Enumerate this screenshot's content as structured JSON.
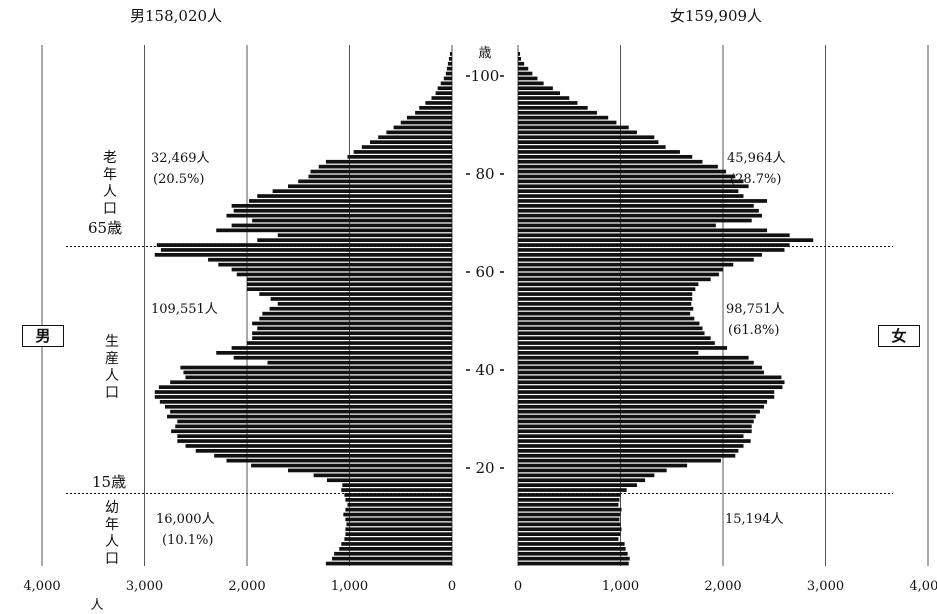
{
  "chart_data": {
    "type": "bar",
    "orientation": "horizontal-pyramid",
    "ages": [
      0,
      1,
      2,
      3,
      4,
      5,
      6,
      7,
      8,
      9,
      10,
      11,
      12,
      13,
      14,
      15,
      16,
      17,
      18,
      19,
      20,
      21,
      22,
      23,
      24,
      25,
      26,
      27,
      28,
      29,
      30,
      31,
      32,
      33,
      34,
      35,
      36,
      37,
      38,
      39,
      40,
      41,
      42,
      43,
      44,
      45,
      46,
      47,
      48,
      49,
      50,
      51,
      52,
      53,
      54,
      55,
      56,
      57,
      58,
      59,
      60,
      61,
      62,
      63,
      64,
      65,
      66,
      67,
      68,
      69,
      70,
      71,
      72,
      73,
      74,
      75,
      76,
      77,
      78,
      79,
      80,
      81,
      82,
      83,
      84,
      85,
      86,
      87,
      88,
      89,
      90,
      91,
      92,
      93,
      94,
      95,
      96,
      97,
      98,
      99,
      100,
      101,
      102,
      103,
      104
    ],
    "series": [
      {
        "name": "男",
        "values": [
          1230,
          1170,
          1150,
          1100,
          1080,
          1050,
          1040,
          1040,
          1030,
          1040,
          1060,
          1040,
          1020,
          1040,
          1050,
          1080,
          1070,
          1220,
          1350,
          1600,
          1960,
          2200,
          2320,
          2500,
          2600,
          2680,
          2680,
          2740,
          2700,
          2680,
          2780,
          2750,
          2800,
          2850,
          2900,
          2900,
          2860,
          2750,
          2600,
          2620,
          2650,
          1800,
          2130,
          2300,
          2150,
          2000,
          1950,
          1950,
          1900,
          1950,
          1880,
          1850,
          1780,
          1700,
          1770,
          1880,
          2000,
          2000,
          2000,
          2100,
          2150,
          2280,
          2380,
          2900,
          2840,
          2880,
          1900,
          1700,
          2300,
          2150,
          1950,
          2200,
          2130,
          2150,
          1980,
          1900,
          1750,
          1600,
          1500,
          1400,
          1380,
          1300,
          1230,
          1020,
          960,
          880,
          800,
          720,
          640,
          570,
          500,
          440,
          360,
          320,
          260,
          200,
          160,
          140,
          110,
          80,
          60,
          50,
          40,
          30,
          20
        ]
      },
      {
        "name": "女",
        "values": [
          1080,
          1090,
          1070,
          1050,
          1040,
          980,
          1000,
          1010,
          1000,
          990,
          1000,
          1010,
          980,
          990,
          1000,
          1060,
          1160,
          1240,
          1330,
          1450,
          1650,
          1980,
          2120,
          2150,
          2200,
          2270,
          2200,
          2280,
          2280,
          2300,
          2320,
          2360,
          2400,
          2430,
          2500,
          2500,
          2580,
          2600,
          2570,
          2400,
          2380,
          2300,
          2250,
          1760,
          2040,
          1920,
          1880,
          1820,
          1800,
          1770,
          1720,
          1680,
          1710,
          1690,
          1700,
          1700,
          1730,
          1760,
          1880,
          1960,
          2000,
          2100,
          2300,
          2380,
          2600,
          2650,
          2880,
          2650,
          2430,
          1930,
          2280,
          2380,
          2350,
          2300,
          2430,
          2200,
          2150,
          2250,
          2200,
          2120,
          2030,
          1950,
          1800,
          1700,
          1580,
          1440,
          1370,
          1330,
          1160,
          1080,
          960,
          880,
          770,
          680,
          580,
          500,
          410,
          340,
          250,
          190,
          140,
          100,
          60,
          30,
          20
        ]
      }
    ],
    "xlabel": "人",
    "xticks_left": [
      "4,000",
      "3,000",
      "2,000",
      "1,000",
      "0"
    ],
    "xticks_right": [
      "0",
      "1,000",
      "2,000",
      "3,000",
      "4,000"
    ],
    "xlim": [
      0,
      4000
    ],
    "age_axis_label": "歳",
    "age_ticks": [
      "100",
      "80",
      "60",
      "40",
      "20"
    ],
    "grid": true
  },
  "titles": {
    "male_total": "男158,020人",
    "female_total": "女159,909人"
  },
  "labels": {
    "male_box": "男",
    "female_box": "女",
    "age65": "65歳",
    "age15": "15歳",
    "elderly_chars": [
      "老",
      "年",
      "人",
      "口"
    ],
    "working_chars": [
      "生",
      "産",
      "人",
      "口"
    ],
    "young_chars": [
      "幼",
      "年",
      "人",
      "口"
    ]
  },
  "stats": {
    "male_elderly": "32,469人",
    "male_elderly_pct": "(20.5%)",
    "male_working": "109,551人",
    "male_young": "16,000人",
    "male_young_pct": "(10.1%)",
    "female_elderly": "45,964人",
    "female_elderly_pct": "(28.7%)",
    "female_working": "98,751人",
    "female_working_pct": "(61.8%)",
    "female_young": "15,194人"
  }
}
